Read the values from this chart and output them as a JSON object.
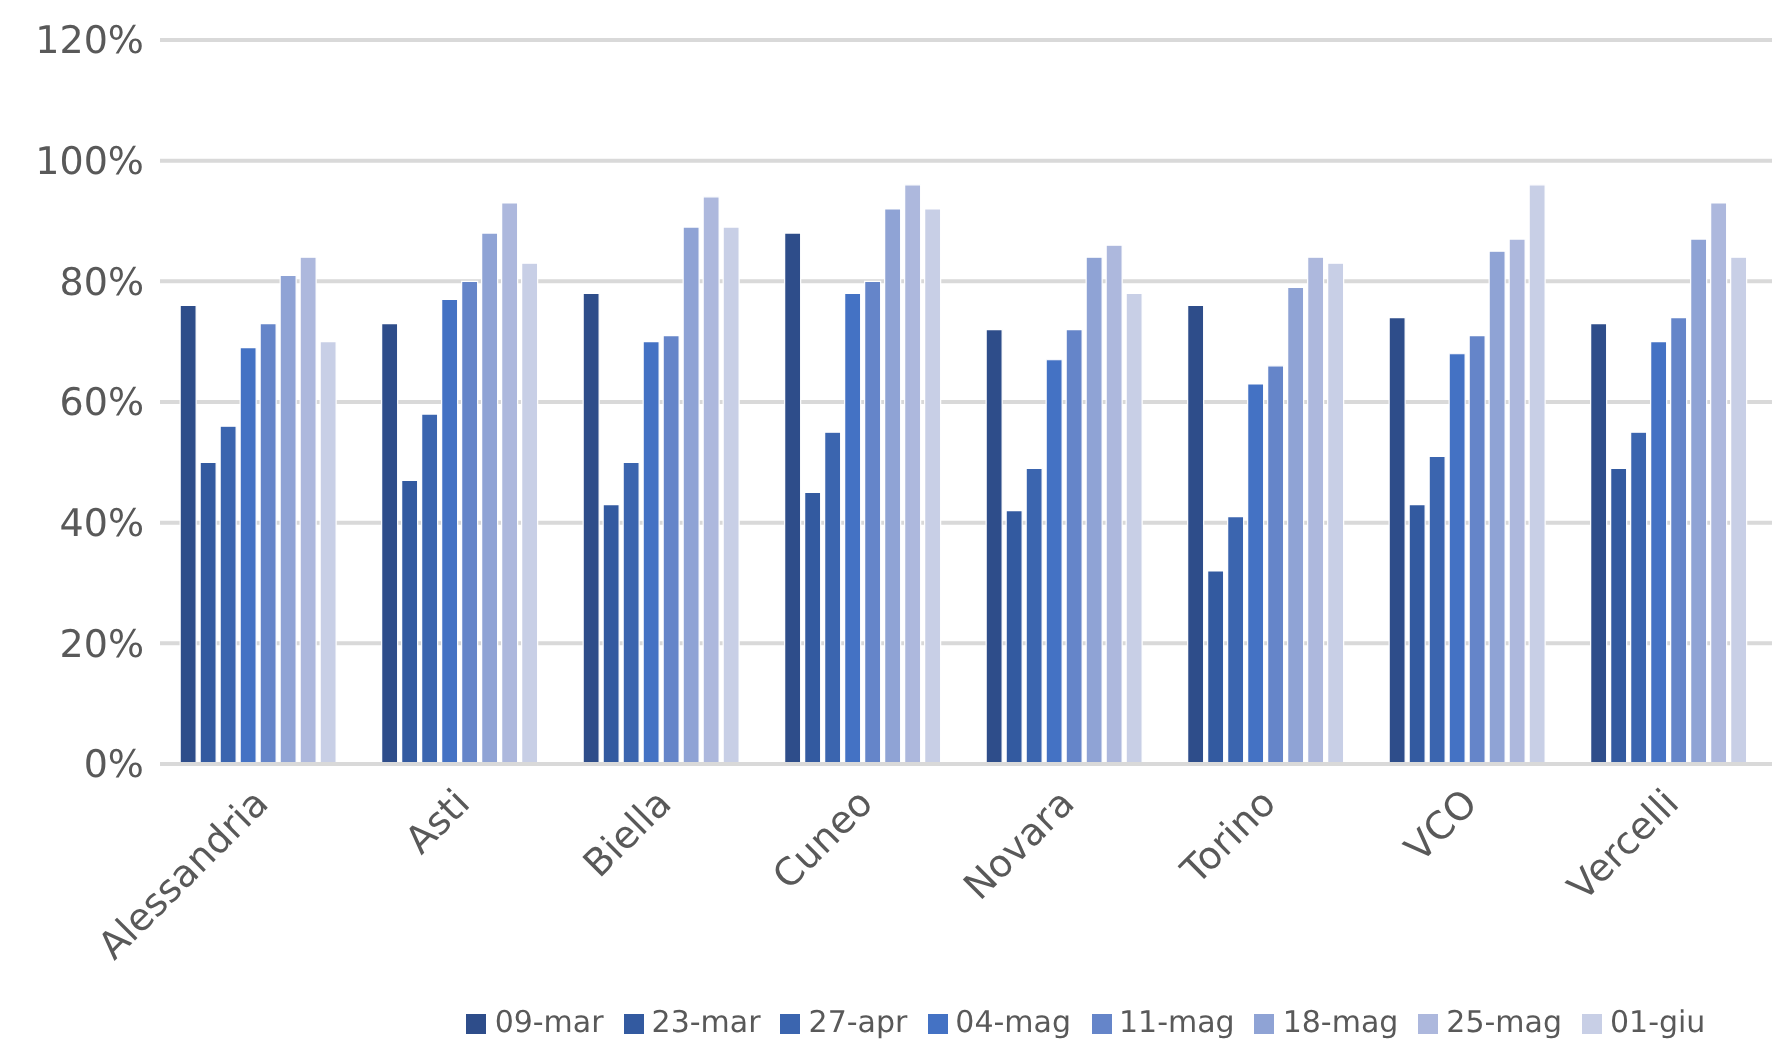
{
  "chart_data": {
    "type": "bar",
    "categories": [
      "Alessandria",
      "Asti",
      "Biella",
      "Cuneo",
      "Novara",
      "Torino",
      "VCO",
      "Vercelli"
    ],
    "series": [
      {
        "name": "09-mar",
        "color": "#2e4d8a",
        "values": [
          76,
          73,
          78,
          88,
          72,
          76,
          74,
          73
        ]
      },
      {
        "name": "23-mar",
        "color": "#335aa0",
        "values": [
          50,
          47,
          43,
          45,
          42,
          32,
          43,
          49
        ]
      },
      {
        "name": "27-apr",
        "color": "#3b65af",
        "values": [
          56,
          58,
          50,
          55,
          49,
          41,
          51,
          55
        ]
      },
      {
        "name": "04-mag",
        "color": "#4472c4",
        "values": [
          69,
          77,
          70,
          78,
          67,
          63,
          68,
          70
        ]
      },
      {
        "name": "11-mag",
        "color": "#6585c9",
        "values": [
          73,
          80,
          71,
          80,
          72,
          66,
          71,
          74
        ]
      },
      {
        "name": "18-mag",
        "color": "#8fa3d5",
        "values": [
          81,
          88,
          89,
          92,
          84,
          79,
          85,
          87
        ]
      },
      {
        "name": "25-mag",
        "color": "#adb8dd",
        "values": [
          84,
          93,
          94,
          96,
          86,
          84,
          87,
          93
        ]
      },
      {
        "name": "01-giu",
        "color": "#c8cfe6",
        "values": [
          70,
          83,
          89,
          92,
          78,
          83,
          96,
          84
        ]
      }
    ],
    "ylim": [
      0,
      120
    ],
    "yticks": [
      {
        "value": 0,
        "label": "0%"
      },
      {
        "value": 20,
        "label": "20%"
      },
      {
        "value": 40,
        "label": "40%"
      },
      {
        "value": 60,
        "label": "60%"
      },
      {
        "value": 80,
        "label": "80%"
      },
      {
        "value": 100,
        "label": "100%"
      },
      {
        "value": 120,
        "label": "120%"
      }
    ],
    "grid": "y",
    "legend": "bottom"
  }
}
